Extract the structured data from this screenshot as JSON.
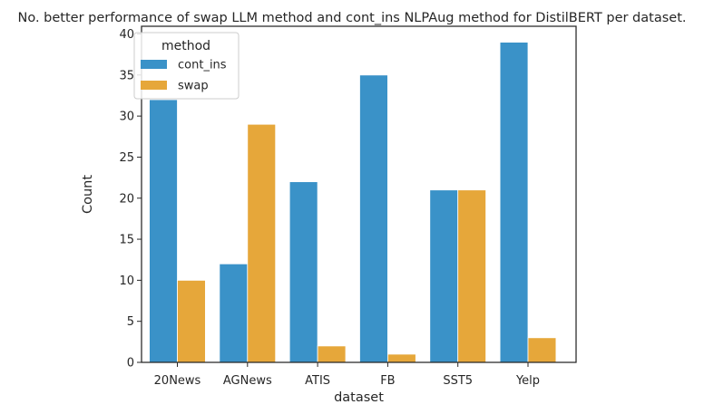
{
  "chart_data": {
    "type": "bar",
    "title": "No. better performance of swap LLM method and cont_ins NLPAug method for DistilBERT per dataset.",
    "xlabel": "dataset",
    "ylabel": "Count",
    "categories": [
      "20News",
      "AGNews",
      "ATIS",
      "FB",
      "SST5",
      "Yelp"
    ],
    "series": [
      {
        "name": "cont_ins",
        "values": [
          32,
          12,
          22,
          35,
          21,
          39
        ],
        "color": "#3a92c8"
      },
      {
        "name": "swap",
        "values": [
          10,
          29,
          2,
          1,
          21,
          3
        ],
        "color": "#e6a73a"
      }
    ],
    "ylim": [
      0,
      40
    ],
    "yticks": [
      0,
      5,
      10,
      15,
      20,
      25,
      30,
      35,
      40
    ],
    "legend": {
      "title": "method",
      "placement": "top-left"
    },
    "grid": false
  }
}
